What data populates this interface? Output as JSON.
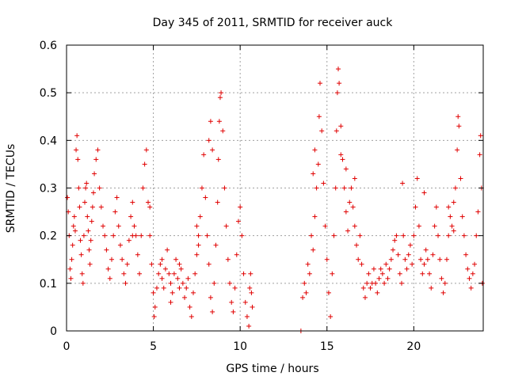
{
  "chart_data": {
    "type": "scatter",
    "title": "Day 345 of 2011, SRMTID for receiver auck",
    "xlabel": "GPS time / hours",
    "ylabel": "SRMTID / TECUs",
    "xlim": [
      0,
      24
    ],
    "ylim": [
      0,
      0.6
    ],
    "x_ticks": [
      0,
      5,
      10,
      15,
      20
    ],
    "x_tick_labels": [
      "0",
      "5",
      "10",
      "15",
      "20"
    ],
    "y_ticks": [
      0,
      0.1,
      0.2,
      0.3,
      0.4,
      0.5,
      0.6
    ],
    "y_tick_labels": [
      "0",
      "0.1",
      "0.2",
      "0.3",
      "0.4",
      "0.5",
      "0.6"
    ],
    "grid": true,
    "marker": "+",
    "color": "#e00000",
    "series": [
      {
        "name": "SRMTID",
        "points": [
          [
            0.05,
            0.28
          ],
          [
            0.1,
            0.25
          ],
          [
            0.15,
            0.2
          ],
          [
            0.2,
            0.13
          ],
          [
            0.25,
            0.11
          ],
          [
            0.3,
            0.15
          ],
          [
            0.35,
            0.18
          ],
          [
            0.4,
            0.22
          ],
          [
            0.45,
            0.24
          ],
          [
            0.5,
            0.21
          ],
          [
            0.55,
            0.38
          ],
          [
            0.6,
            0.41
          ],
          [
            0.65,
            0.36
          ],
          [
            0.7,
            0.3
          ],
          [
            0.75,
            0.26
          ],
          [
            0.8,
            0.19
          ],
          [
            0.85,
            0.16
          ],
          [
            0.9,
            0.12
          ],
          [
            0.95,
            0.1
          ],
          [
            1.0,
            0.2
          ],
          [
            1.05,
            0.27
          ],
          [
            1.1,
            0.3
          ],
          [
            1.15,
            0.31
          ],
          [
            1.2,
            0.24
          ],
          [
            1.25,
            0.21
          ],
          [
            1.3,
            0.17
          ],
          [
            1.35,
            0.14
          ],
          [
            1.4,
            0.19
          ],
          [
            1.45,
            0.23
          ],
          [
            1.5,
            0.26
          ],
          [
            1.55,
            0.29
          ],
          [
            1.6,
            0.33
          ],
          [
            1.7,
            0.36
          ],
          [
            1.8,
            0.38
          ],
          [
            1.9,
            0.3
          ],
          [
            2.0,
            0.26
          ],
          [
            2.1,
            0.22
          ],
          [
            2.2,
            0.2
          ],
          [
            2.3,
            0.17
          ],
          [
            2.4,
            0.13
          ],
          [
            2.5,
            0.11
          ],
          [
            2.6,
            0.15
          ],
          [
            2.7,
            0.2
          ],
          [
            2.8,
            0.25
          ],
          [
            2.9,
            0.28
          ],
          [
            3.0,
            0.22
          ],
          [
            3.1,
            0.18
          ],
          [
            3.2,
            0.15
          ],
          [
            3.3,
            0.12
          ],
          [
            3.4,
            0.1
          ],
          [
            3.5,
            0.14
          ],
          [
            3.6,
            0.19
          ],
          [
            3.7,
            0.24
          ],
          [
            3.8,
            0.27
          ],
          [
            3.9,
            0.22
          ],
          [
            4.0,
            0.2
          ],
          [
            4.1,
            0.16
          ],
          [
            4.2,
            0.12
          ],
          [
            4.3,
            0.2
          ],
          [
            4.4,
            0.3
          ],
          [
            4.5,
            0.35
          ],
          [
            4.6,
            0.38
          ],
          [
            4.7,
            0.27
          ],
          [
            4.8,
            0.2
          ],
          [
            4.9,
            0.14
          ],
          [
            5.0,
            0.08
          ],
          [
            5.05,
            0.03
          ],
          [
            5.1,
            0.05
          ],
          [
            5.2,
            0.09
          ],
          [
            5.3,
            0.12
          ],
          [
            5.4,
            0.14
          ],
          [
            5.5,
            0.11
          ],
          [
            5.6,
            0.09
          ],
          [
            5.7,
            0.13
          ],
          [
            5.8,
            0.17
          ],
          [
            5.9,
            0.12
          ],
          [
            6.0,
            0.1
          ],
          [
            6.1,
            0.08
          ],
          [
            6.2,
            0.12
          ],
          [
            6.3,
            0.15
          ],
          [
            6.4,
            0.11
          ],
          [
            6.5,
            0.09
          ],
          [
            6.6,
            0.13
          ],
          [
            6.7,
            0.1
          ],
          [
            6.8,
            0.07
          ],
          [
            6.9,
            0.09
          ],
          [
            7.0,
            0.11
          ],
          [
            7.1,
            0.05
          ],
          [
            7.2,
            0.03
          ],
          [
            7.3,
            0.08
          ],
          [
            7.4,
            0.12
          ],
          [
            7.5,
            0.16
          ],
          [
            7.6,
            0.2
          ],
          [
            7.7,
            0.24
          ],
          [
            7.8,
            0.3
          ],
          [
            7.9,
            0.37
          ],
          [
            8.0,
            0.28
          ],
          [
            8.1,
            0.2
          ],
          [
            8.2,
            0.14
          ],
          [
            8.3,
            0.07
          ],
          [
            8.4,
            0.04
          ],
          [
            8.5,
            0.1
          ],
          [
            8.6,
            0.18
          ],
          [
            8.7,
            0.27
          ],
          [
            8.75,
            0.36
          ],
          [
            8.8,
            0.44
          ],
          [
            8.85,
            0.49
          ],
          [
            8.9,
            0.5
          ],
          [
            9.0,
            0.42
          ],
          [
            9.1,
            0.3
          ],
          [
            9.2,
            0.22
          ],
          [
            9.3,
            0.15
          ],
          [
            9.4,
            0.1
          ],
          [
            9.5,
            0.06
          ],
          [
            9.6,
            0.04
          ],
          [
            9.7,
            0.09
          ],
          [
            9.8,
            0.16
          ],
          [
            9.9,
            0.23
          ],
          [
            10.0,
            0.26
          ],
          [
            10.1,
            0.2
          ],
          [
            10.2,
            0.12
          ],
          [
            10.3,
            0.06
          ],
          [
            10.4,
            0.03
          ],
          [
            10.5,
            0.01
          ],
          [
            10.55,
            0.09
          ],
          [
            10.6,
            0.12
          ],
          [
            10.65,
            0.08
          ],
          [
            10.7,
            0.05
          ],
          [
            8.2,
            0.4
          ],
          [
            8.3,
            0.44
          ],
          [
            8.4,
            0.38
          ],
          [
            7.5,
            0.22
          ],
          [
            7.6,
            0.18
          ],
          [
            6.0,
            0.06
          ],
          [
            6.5,
            0.14
          ],
          [
            5.5,
            0.15
          ],
          [
            4.8,
            0.26
          ],
          [
            3.8,
            0.2
          ],
          [
            13.5,
            0.0
          ],
          [
            13.6,
            0.07
          ],
          [
            13.7,
            0.1
          ],
          [
            13.8,
            0.08
          ],
          [
            13.9,
            0.14
          ],
          [
            14.0,
            0.12
          ],
          [
            14.1,
            0.2
          ],
          [
            14.2,
            0.17
          ],
          [
            14.3,
            0.24
          ],
          [
            14.4,
            0.3
          ],
          [
            14.5,
            0.35
          ],
          [
            14.55,
            0.45
          ],
          [
            14.6,
            0.52
          ],
          [
            14.7,
            0.42
          ],
          [
            14.8,
            0.31
          ],
          [
            14.9,
            0.22
          ],
          [
            15.0,
            0.15
          ],
          [
            15.1,
            0.08
          ],
          [
            15.2,
            0.03
          ],
          [
            15.3,
            0.12
          ],
          [
            15.4,
            0.2
          ],
          [
            15.5,
            0.3
          ],
          [
            15.55,
            0.42
          ],
          [
            15.6,
            0.5
          ],
          [
            15.65,
            0.55
          ],
          [
            15.7,
            0.52
          ],
          [
            15.8,
            0.43
          ],
          [
            15.9,
            0.36
          ],
          [
            16.0,
            0.3
          ],
          [
            16.1,
            0.25
          ],
          [
            16.2,
            0.21
          ],
          [
            16.3,
            0.27
          ],
          [
            16.4,
            0.3
          ],
          [
            16.5,
            0.26
          ],
          [
            16.6,
            0.22
          ],
          [
            16.7,
            0.18
          ],
          [
            16.8,
            0.15
          ],
          [
            16.9,
            0.2
          ],
          [
            17.0,
            0.14
          ],
          [
            17.1,
            0.09
          ],
          [
            17.2,
            0.07
          ],
          [
            17.3,
            0.1
          ],
          [
            17.4,
            0.12
          ],
          [
            17.5,
            0.09
          ],
          [
            17.6,
            0.1
          ],
          [
            17.7,
            0.13
          ],
          [
            17.8,
            0.1
          ],
          [
            17.9,
            0.08
          ],
          [
            18.0,
            0.11
          ],
          [
            18.1,
            0.13
          ],
          [
            18.2,
            0.12
          ],
          [
            18.3,
            0.1
          ],
          [
            18.4,
            0.14
          ],
          [
            18.5,
            0.11
          ],
          [
            18.6,
            0.13
          ],
          [
            18.7,
            0.15
          ],
          [
            18.8,
            0.17
          ],
          [
            18.9,
            0.19
          ],
          [
            19.0,
            0.2
          ],
          [
            19.1,
            0.16
          ],
          [
            19.2,
            0.12
          ],
          [
            19.3,
            0.1
          ],
          [
            19.35,
            0.31
          ],
          [
            19.4,
            0.2
          ],
          [
            19.5,
            0.15
          ],
          [
            19.6,
            0.13
          ],
          [
            19.7,
            0.16
          ],
          [
            19.8,
            0.18
          ],
          [
            19.9,
            0.14
          ],
          [
            20.0,
            0.2
          ],
          [
            20.1,
            0.26
          ],
          [
            20.2,
            0.32
          ],
          [
            20.3,
            0.22
          ],
          [
            20.4,
            0.15
          ],
          [
            20.5,
            0.12
          ],
          [
            20.6,
            0.14
          ],
          [
            20.7,
            0.17
          ],
          [
            20.8,
            0.15
          ],
          [
            20.9,
            0.12
          ],
          [
            21.0,
            0.09
          ],
          [
            21.1,
            0.16
          ],
          [
            21.2,
            0.22
          ],
          [
            21.3,
            0.26
          ],
          [
            21.4,
            0.2
          ],
          [
            21.5,
            0.15
          ],
          [
            21.6,
            0.11
          ],
          [
            21.7,
            0.08
          ],
          [
            21.8,
            0.1
          ],
          [
            21.9,
            0.15
          ],
          [
            22.0,
            0.2
          ],
          [
            22.1,
            0.24
          ],
          [
            22.2,
            0.22
          ],
          [
            22.3,
            0.27
          ],
          [
            22.4,
            0.3
          ],
          [
            22.5,
            0.38
          ],
          [
            22.55,
            0.45
          ],
          [
            22.6,
            0.43
          ],
          [
            22.7,
            0.32
          ],
          [
            22.8,
            0.24
          ],
          [
            22.9,
            0.2
          ],
          [
            23.0,
            0.16
          ],
          [
            23.1,
            0.13
          ],
          [
            23.2,
            0.11
          ],
          [
            23.3,
            0.09
          ],
          [
            23.4,
            0.12
          ],
          [
            23.5,
            0.14
          ],
          [
            23.6,
            0.2
          ],
          [
            23.7,
            0.25
          ],
          [
            23.8,
            0.37
          ],
          [
            23.85,
            0.41
          ],
          [
            23.9,
            0.3
          ],
          [
            23.95,
            0.1
          ],
          [
            14.3,
            0.38
          ],
          [
            14.2,
            0.33
          ],
          [
            15.8,
            0.37
          ],
          [
            16.1,
            0.34
          ],
          [
            16.6,
            0.32
          ],
          [
            22.3,
            0.21
          ],
          [
            22.0,
            0.26
          ],
          [
            20.6,
            0.29
          ]
        ]
      }
    ]
  }
}
